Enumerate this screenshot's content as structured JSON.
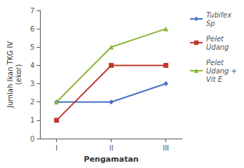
{
  "chart_data": {
    "type": "line",
    "x": [
      1,
      2,
      3
    ],
    "xticks": [
      {
        "value": 1,
        "label": "I"
      },
      {
        "value": 2,
        "label": "II"
      },
      {
        "value": 3,
        "label": "III"
      }
    ],
    "xlim": [
      0.7,
      3.3
    ],
    "ylim": [
      0,
      7
    ],
    "yticks": [
      0,
      1,
      2,
      3,
      4,
      5,
      6,
      7
    ],
    "xlabel": "Pengamatan",
    "ylabel": "Jumlah Ikan TKG IV\n(ekor)",
    "grid": false,
    "legend": "right",
    "series": [
      {
        "name": "Tubifex\nSp",
        "color": "#4472C4",
        "marker": "diamond",
        "line_style": "solid",
        "values": [
          2,
          2,
          3
        ]
      },
      {
        "name": "Pelet\nUdang",
        "color": "#C0392B",
        "marker": "square",
        "line_style": "solid",
        "values": [
          1,
          4,
          4
        ]
      },
      {
        "name": "Pelet\nUdang +\nVit E",
        "color": "#8DB53A",
        "marker": "triangle",
        "line_style": "solid",
        "values": [
          2,
          5,
          6
        ]
      }
    ]
  }
}
